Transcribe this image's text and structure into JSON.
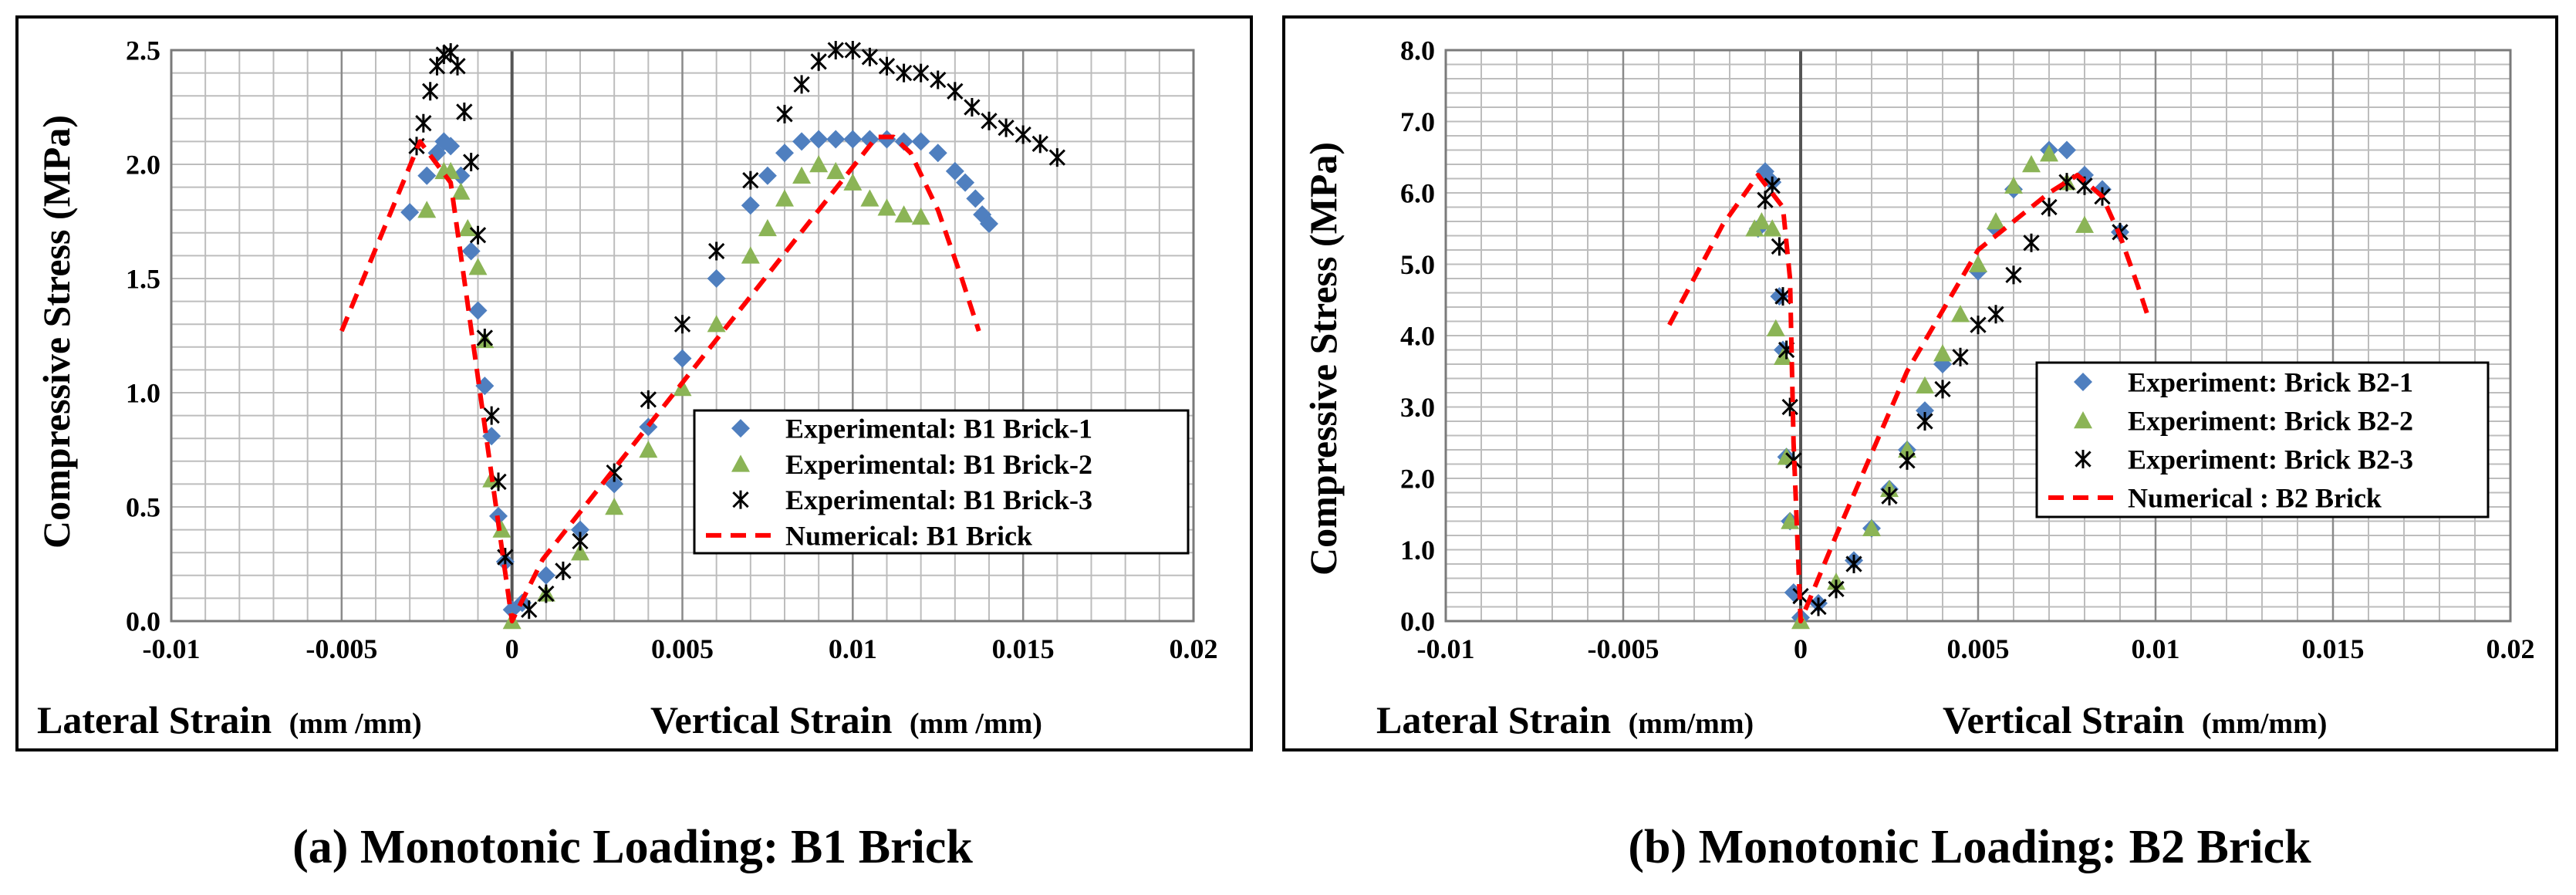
{
  "chart_data": [
    {
      "type": "scatter",
      "caption": "(a) Monotonic Loading: B1 Brick",
      "ylabel": "Compressive Stress (MPa)",
      "xlabel_left": "Lateral Strain",
      "xlabel_left_unit": "(mm /mm)",
      "xlabel_right": "Vertical Strain",
      "xlabel_right_unit": "(mm /mm)",
      "xlim": [
        -0.01,
        0.02
      ],
      "ylim": [
        0,
        2.5
      ],
      "x_ticks": [
        -0.01,
        -0.005,
        0,
        0.005,
        0.01,
        0.015,
        0.02
      ],
      "x_tick_labels": [
        "-0.01",
        "-0.005",
        "0",
        "0.005",
        "0.01",
        "0.015",
        "0.02"
      ],
      "y_ticks": [
        0,
        0.5,
        1.0,
        1.5,
        2.0,
        2.5
      ],
      "y_tick_labels": [
        "0.0",
        "0.5",
        "1.0",
        "1.5",
        "2.0",
        "2.5"
      ],
      "grid": {
        "x_step": 0.001,
        "y_step": 0.1
      },
      "legend_position": "middle-right",
      "series": [
        {
          "name": "Experimental: B1 Brick-1",
          "marker": "diamond",
          "color": "#4f7fbf",
          "x": [
            -0.003,
            -0.0025,
            -0.0022,
            -0.002,
            -0.0018,
            -0.0015,
            -0.0012,
            -0.001,
            -0.0008,
            -0.0006,
            -0.0004,
            -0.0002,
            0,
            0.0003,
            0.001,
            0.002,
            0.003,
            0.004,
            0.005,
            0.006,
            0.007,
            0.0075,
            0.008,
            0.0085,
            0.009,
            0.0095,
            0.01,
            0.0105,
            0.011,
            0.0115,
            0.012,
            0.0125,
            0.013,
            0.0133,
            0.0136,
            0.0138,
            0.014
          ],
          "y": [
            1.79,
            1.95,
            2.05,
            2.1,
            2.08,
            1.95,
            1.62,
            1.36,
            1.03,
            0.81,
            0.46,
            0.26,
            0.05,
            0.08,
            0.2,
            0.4,
            0.6,
            0.85,
            1.15,
            1.5,
            1.82,
            1.95,
            2.05,
            2.1,
            2.11,
            2.11,
            2.11,
            2.11,
            2.11,
            2.1,
            2.1,
            2.05,
            1.97,
            1.92,
            1.85,
            1.78,
            1.74
          ]
        },
        {
          "name": "Experimental: B1 Brick-2",
          "marker": "triangle",
          "color": "#8bb456",
          "x": [
            -0.0025,
            -0.002,
            -0.0018,
            -0.0015,
            -0.0013,
            -0.001,
            -0.0008,
            -0.0006,
            -0.0003,
            0,
            0.001,
            0.002,
            0.003,
            0.004,
            0.005,
            0.006,
            0.007,
            0.0075,
            0.008,
            0.0085,
            0.009,
            0.0095,
            0.01,
            0.0105,
            0.011,
            0.0115,
            0.012
          ],
          "y": [
            1.8,
            1.97,
            1.97,
            1.88,
            1.72,
            1.55,
            1.23,
            0.62,
            0.4,
            0.0,
            0.12,
            0.3,
            0.5,
            0.75,
            1.02,
            1.3,
            1.6,
            1.72,
            1.85,
            1.95,
            2.0,
            1.97,
            1.92,
            1.85,
            1.81,
            1.78,
            1.77
          ]
        },
        {
          "name": "Experimental: B1 Brick-3",
          "marker": "asterisk",
          "color": "#000000",
          "x": [
            -0.0028,
            -0.0026,
            -0.0024,
            -0.0022,
            -0.002,
            -0.0018,
            -0.0016,
            -0.0014,
            -0.0012,
            -0.001,
            -0.0008,
            -0.0006,
            -0.0004,
            -0.0002,
            0.0005,
            0.001,
            0.0015,
            0.002,
            0.003,
            0.004,
            0.005,
            0.006,
            0.007,
            0.008,
            0.0085,
            0.009,
            0.0095,
            0.01,
            0.0105,
            0.011,
            0.0115,
            0.012,
            0.0125,
            0.013,
            0.0135,
            0.014,
            0.0145,
            0.015,
            0.0155,
            0.016
          ],
          "y": [
            2.08,
            2.18,
            2.32,
            2.43,
            2.48,
            2.49,
            2.43,
            2.23,
            2.01,
            1.69,
            1.24,
            0.9,
            0.61,
            0.28,
            0.05,
            0.12,
            0.22,
            0.35,
            0.65,
            0.97,
            1.3,
            1.62,
            1.93,
            2.22,
            2.35,
            2.45,
            2.5,
            2.5,
            2.47,
            2.43,
            2.4,
            2.4,
            2.37,
            2.32,
            2.25,
            2.19,
            2.16,
            2.13,
            2.09,
            2.03
          ]
        },
        {
          "name": "Numerical: B1 Brick",
          "marker": "dashed-line",
          "color": "#ff0000",
          "x": [
            -0.005,
            -0.0027,
            -0.0018,
            0,
            0.0009,
            0.0107,
            0.0112,
            0.0117,
            0.0125,
            0.0132,
            0.0137
          ],
          "y": [
            1.27,
            2.1,
            1.92,
            0.0,
            0.27,
            2.12,
            2.12,
            2.05,
            1.8,
            1.5,
            1.27
          ]
        }
      ]
    },
    {
      "type": "scatter",
      "caption": "(b) Monotonic Loading: B2 Brick",
      "ylabel": "Compressive Stress (MPa)",
      "xlabel_left": "Lateral Strain",
      "xlabel_left_unit": "(mm/mm)",
      "xlabel_right": "Vertical Strain",
      "xlabel_right_unit": "(mm/mm)",
      "xlim": [
        -0.01,
        0.02
      ],
      "ylim": [
        0,
        8
      ],
      "x_ticks": [
        -0.01,
        -0.005,
        0,
        0.005,
        0.01,
        0.015,
        0.02
      ],
      "x_tick_labels": [
        "-0.01",
        "-0.005",
        "0",
        "0.005",
        "0.01",
        "0.015",
        "0.02"
      ],
      "y_ticks": [
        0,
        1,
        2,
        3,
        4,
        5,
        6,
        7,
        8
      ],
      "y_tick_labels": [
        "0.0",
        "1.0",
        "2.0",
        "3.0",
        "4.0",
        "5.0",
        "6.0",
        "7.0",
        "8.0"
      ],
      "grid": {
        "x_step": 0.001,
        "y_step": 0.2
      },
      "legend_position": "middle-right",
      "series": [
        {
          "name": "Experiment: Brick B2-1",
          "marker": "diamond",
          "color": "#4f7fbf",
          "x": [
            -0.0012,
            -0.001,
            -0.0008,
            -0.0006,
            -0.0005,
            -0.0004,
            -0.0003,
            -0.0002,
            0,
            0.0005,
            0.0015,
            0.002,
            0.0025,
            0.003,
            0.0035,
            0.004,
            0.005,
            0.0055,
            0.006,
            0.007,
            0.0075,
            0.008,
            0.0085,
            0.009
          ],
          "y": [
            5.5,
            6.3,
            6.15,
            4.55,
            3.8,
            2.3,
            1.4,
            0.4,
            0.05,
            0.25,
            0.85,
            1.3,
            1.85,
            2.4,
            2.95,
            3.6,
            4.9,
            5.5,
            6.05,
            6.6,
            6.6,
            6.25,
            6.05,
            5.45
          ]
        },
        {
          "name": "Experiment: Brick B2-2",
          "marker": "triangle",
          "color": "#8bb456",
          "x": [
            -0.0013,
            -0.0011,
            -0.0008,
            -0.0007,
            -0.0005,
            -0.0004,
            -0.0003,
            0,
            0.001,
            0.002,
            0.0025,
            0.003,
            0.0035,
            0.004,
            0.0045,
            0.005,
            0.0055,
            0.006,
            0.0065,
            0.007,
            0.0075,
            0.008
          ],
          "y": [
            5.5,
            5.6,
            5.5,
            4.1,
            3.7,
            2.3,
            1.4,
            0.0,
            0.55,
            1.3,
            1.85,
            2.4,
            3.3,
            3.75,
            4.3,
            5.0,
            5.6,
            6.1,
            6.4,
            6.55,
            6.15,
            5.55
          ]
        },
        {
          "name": "Experiment: Brick B2-3",
          "marker": "asterisk",
          "color": "#000000",
          "x": [
            -0.001,
            -0.0008,
            -0.0006,
            -0.0005,
            -0.0004,
            -0.0003,
            -0.0002,
            0,
            0.0005,
            0.001,
            0.0015,
            0.0025,
            0.003,
            0.0035,
            0.004,
            0.0045,
            0.005,
            0.0055,
            0.006,
            0.0065,
            0.007,
            0.0075,
            0.008,
            0.0085,
            0.009
          ],
          "y": [
            5.9,
            6.1,
            5.25,
            4.55,
            3.8,
            3.0,
            2.25,
            0.35,
            0.2,
            0.45,
            0.8,
            1.75,
            2.25,
            2.8,
            3.25,
            3.7,
            4.15,
            4.3,
            4.85,
            5.3,
            5.8,
            6.15,
            6.1,
            5.95,
            5.45
          ]
        },
        {
          "name": "Numerical : B2 Brick",
          "marker": "dashed-line",
          "color": "#ff0000",
          "x": [
            -0.0037,
            -0.0022,
            -0.0012,
            -0.0005,
            -0.0003,
            -0.0002,
            0,
            0.001,
            0.003,
            0.005,
            0.007,
            0.0078,
            0.0085,
            0.009,
            0.0095,
            0.0098
          ],
          "y": [
            4.15,
            5.55,
            6.25,
            5.8,
            4.8,
            2.5,
            0.0,
            1.2,
            3.5,
            5.2,
            6.0,
            6.25,
            5.95,
            5.4,
            4.7,
            4.25
          ]
        }
      ]
    }
  ]
}
